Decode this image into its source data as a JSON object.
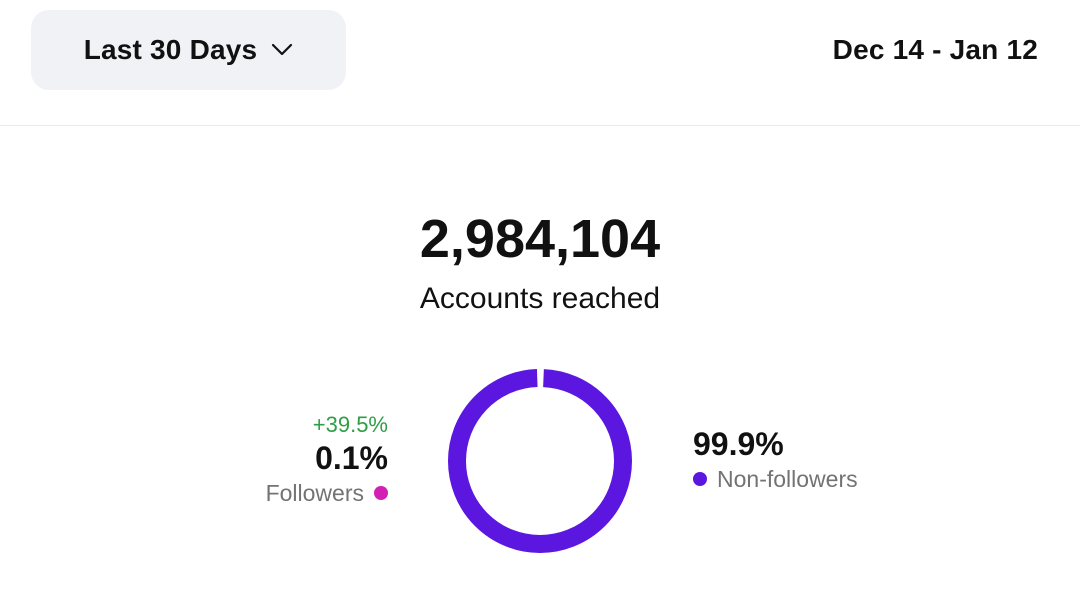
{
  "header": {
    "range_label": "Last 30 Days",
    "date_range": "Dec 14 - Jan 12"
  },
  "summary": {
    "total": "2,984,104",
    "total_label": "Accounts reached"
  },
  "breakdown": {
    "followers": {
      "change": "+39.5%",
      "percent": "0.1%",
      "label": "Followers",
      "color": "#d21fb4",
      "value": 0.1
    },
    "non_followers": {
      "percent": "99.9%",
      "label": "Non-followers",
      "color": "#5b16e0",
      "value": 99.9
    }
  },
  "chart_data": {
    "type": "pie",
    "categories": [
      "Followers",
      "Non-followers"
    ],
    "values": [
      0.1,
      99.9
    ],
    "colors": [
      "#d21fb4",
      "#5b16e0"
    ]
  }
}
